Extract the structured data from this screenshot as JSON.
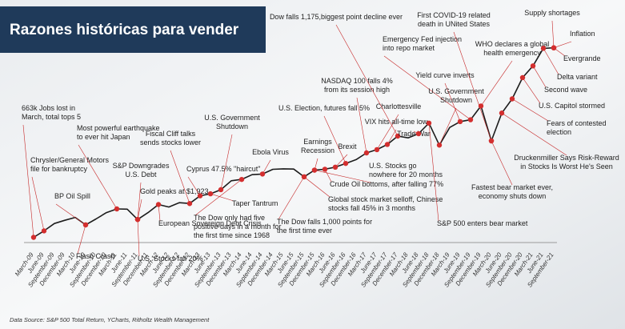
{
  "chart_data": {
    "type": "line",
    "title": "Razones históricas para vender",
    "source": "Data Source: S&P 500 Total Return, YCharts, Ritholtz Wealth Management",
    "categories": [
      "March-09",
      "June-09",
      "September-09",
      "December-09",
      "March-10",
      "June-10",
      "September-10",
      "December-10",
      "March-11",
      "June-11",
      "September-11",
      "December-11",
      "March-12",
      "June-12",
      "September-12",
      "December-12",
      "March-13",
      "June-13",
      "September-13",
      "December-13",
      "March-14",
      "June-14",
      "September-14",
      "December-14",
      "March-15",
      "June-15",
      "September-15",
      "December-15",
      "March-16",
      "June-16",
      "September-16",
      "December-16",
      "March-17",
      "June-17",
      "September-17",
      "December-17",
      "March-18",
      "June-18",
      "September-18",
      "December-18",
      "March-19",
      "June-19",
      "September-19",
      "December-19",
      "March-20",
      "June-20",
      "September-20",
      "December-20",
      "March-21",
      "June-21",
      "September-21"
    ],
    "values": [
      800,
      920,
      1057,
      1115,
      1169,
      1031,
      1141,
      1258,
      1326,
      1321,
      1131,
      1258,
      1408,
      1362,
      1441,
      1426,
      1569,
      1606,
      1682,
      1848,
      1872,
      1960,
      1972,
      2059,
      2068,
      2063,
      1920,
      2044,
      2060,
      2099,
      2168,
      2239,
      2363,
      2423,
      2519,
      2674,
      2641,
      2718,
      2914,
      2507,
      2834,
      2942,
      2977,
      3231,
      2585,
      3100,
      3363,
      3756,
      3973,
      4298,
      4308
    ],
    "color": "#1c1c1c",
    "ylim": [
      600,
      4600
    ],
    "annotations": [
      {
        "lines": [
          "663k Jobs lost in",
          "March, total tops 5"
        ]
      },
      {
        "lines": [
          "Chrysler/General Motors",
          "file for bankruptcy"
        ]
      },
      {
        "lines": [
          "BP Oil Spill"
        ]
      },
      {
        "lines": [
          "Flash Crash"
        ]
      },
      {
        "lines": [
          "Most powerful earthquake",
          "to ever hit Japan"
        ]
      },
      {
        "lines": [
          "S&P Downgrades",
          "U.S. Debt"
        ]
      },
      {
        "lines": [
          "Gold peaks at $1,923"
        ]
      },
      {
        "lines": [
          "U.S. Stocks fall 20%"
        ]
      },
      {
        "lines": [
          "Fiscal Cliff talks",
          "sends stocks lower"
        ]
      },
      {
        "lines": [
          "European Sovereign Debt Crisis"
        ]
      },
      {
        "lines": [
          "Cyprus 47.5% \"haircut\""
        ]
      },
      {
        "lines": [
          "U.S. Government",
          "Shutdown"
        ]
      },
      {
        "lines": [
          "Taper Tantrum"
        ]
      },
      {
        "lines": [
          "The Dow only had five",
          "positive days in a month for",
          "the first time since 1968"
        ]
      },
      {
        "lines": [
          "Ebola Virus"
        ]
      },
      {
        "lines": [
          "The Dow falls 1,000 points for",
          "the first time ever"
        ]
      },
      {
        "lines": [
          "Earnings",
          "Recession"
        ]
      },
      {
        "lines": [
          "Brexit"
        ]
      },
      {
        "lines": [
          "Global stock market selloff, Chinese",
          "stocks fall 45% in 3 months"
        ]
      },
      {
        "lines": [
          "Crude Oil bottoms, after falling 77%"
        ]
      },
      {
        "lines": [
          "U.S. Stocks go",
          "nowhere for 20 months"
        ]
      },
      {
        "lines": [
          "U.S. Election, futures fall 5%"
        ]
      },
      {
        "lines": [
          "NASDAQ 100 falls 4%",
          "from its  session high"
        ]
      },
      {
        "lines": [
          "Charlottesville"
        ]
      },
      {
        "lines": [
          "VIX hits all-time low"
        ]
      },
      {
        "lines": [
          "Dow falls 1,175,biggest point decline ever"
        ]
      },
      {
        "lines": [
          "Trade War"
        ]
      },
      {
        "lines": [
          "Emergency Fed injection",
          "into repo market"
        ]
      },
      {
        "lines": [
          "Yield curve inverts"
        ]
      },
      {
        "lines": [
          "U.S. Government",
          "Shutdown"
        ]
      },
      {
        "lines": [
          "S&P 500 enters bear market"
        ]
      },
      {
        "lines": [
          "First COVID-19 related",
          "death in UNited States"
        ]
      },
      {
        "lines": [
          "WHO declares a global",
          "health emergency"
        ]
      },
      {
        "lines": [
          "Fastest bear market ever,",
          "economy shuts down"
        ]
      },
      {
        "lines": [
          "Druckenmiller Says Risk-Reward",
          "in Stocks Is Worst He's Seen"
        ]
      },
      {
        "lines": [
          "Supply shortages"
        ]
      },
      {
        "lines": [
          "Inflation"
        ]
      },
      {
        "lines": [
          "Evergrande"
        ]
      },
      {
        "lines": [
          "Delta variant"
        ]
      },
      {
        "lines": [
          "Second wave"
        ]
      },
      {
        "lines": [
          "U.S. Capitol stormed"
        ]
      },
      {
        "lines": [
          "Fears of contested",
          "election"
        ]
      }
    ]
  }
}
